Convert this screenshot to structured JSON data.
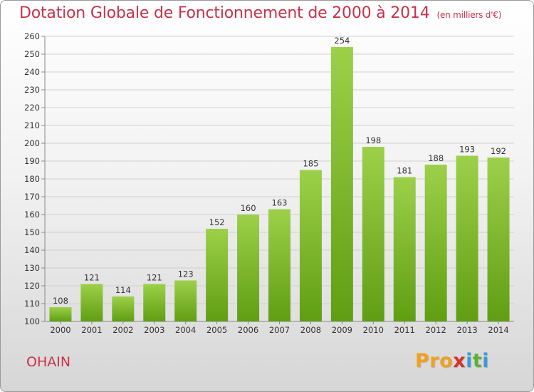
{
  "header": {
    "title": "Dotation Globale de Fonctionnement de 2000 à 2014",
    "subtitle": "(en milliers d'€)"
  },
  "footer": {
    "commune": "OHAIN",
    "logo_letters": [
      "P",
      "r",
      "o",
      "x",
      "i",
      "t",
      "i"
    ]
  },
  "colors": {
    "title": "#c8324a",
    "bar_light": "#9dd04a",
    "bar_dark": "#5f9e12",
    "logo": [
      "#f0a020",
      "#f0a020",
      "#f0a020",
      "#d83030",
      "#3a9ad8",
      "#60b030",
      "#3a9ad8"
    ]
  },
  "chart_data": {
    "type": "bar",
    "title": "Dotation Globale de Fonctionnement de 2000 à 2014",
    "subtitle": "(en milliers d'€)",
    "categories": [
      "2000",
      "2001",
      "2002",
      "2003",
      "2004",
      "2005",
      "2006",
      "2007",
      "2008",
      "2009",
      "2010",
      "2011",
      "2012",
      "2013",
      "2014"
    ],
    "values": [
      108,
      121,
      114,
      121,
      123,
      152,
      160,
      163,
      185,
      254,
      198,
      181,
      188,
      193,
      192
    ],
    "ylim": [
      100,
      260
    ],
    "ytick_step": 10,
    "grid": true,
    "legend": "none"
  }
}
